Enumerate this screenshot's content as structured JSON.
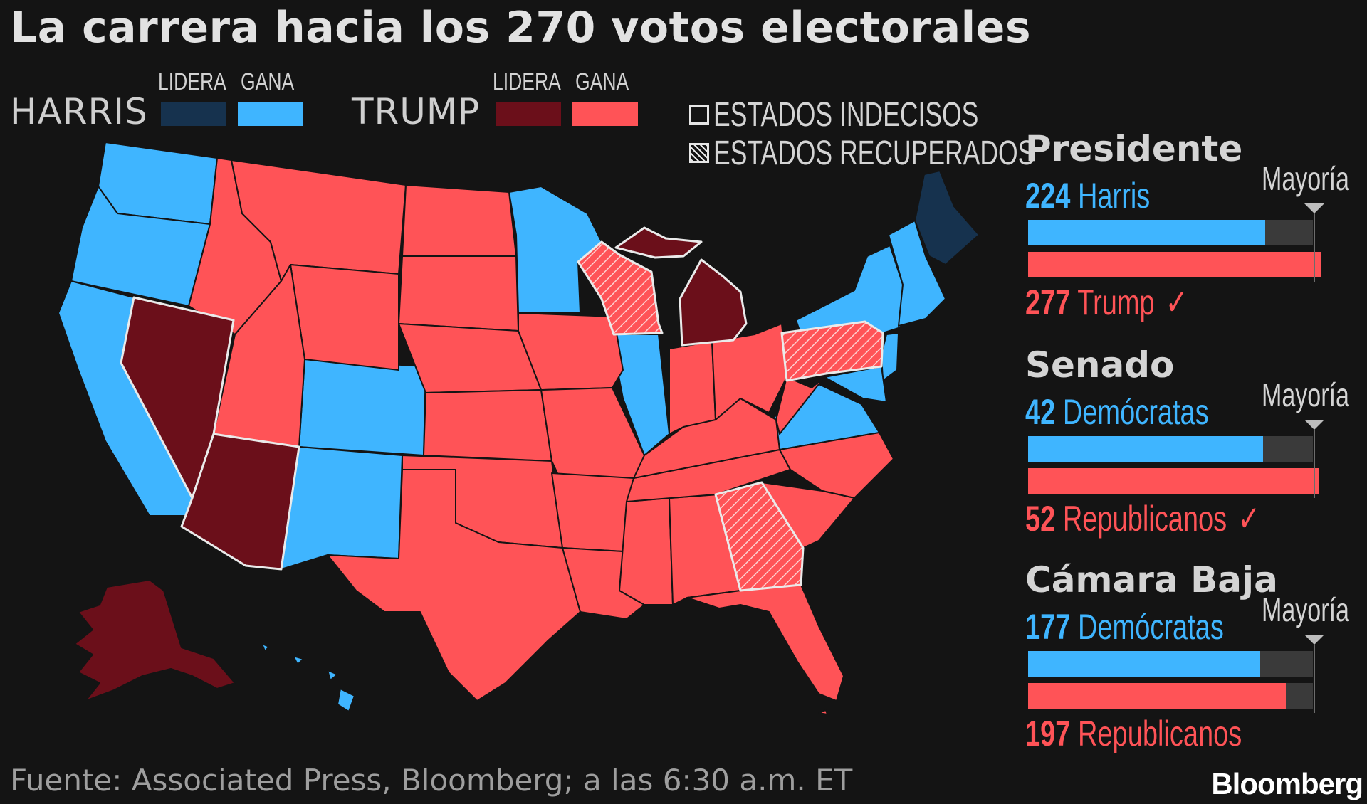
{
  "title": "La carrera hacia los 270 votos electorales",
  "legend": {
    "harris": "HARRIS",
    "trump": "TRUMP",
    "lidera": "LIDERA",
    "gana": "GANA",
    "undecided": "ESTADOS INDECISOS",
    "flipped": "ESTADOS RECUPERADOS",
    "colors": {
      "harris_lead": "#16324e",
      "harris_win": "#3fb5ff",
      "trump_lead": "#6b0f1a",
      "trump_win": "#ff5357"
    }
  },
  "panels": [
    {
      "title": "Presidente",
      "majority_label": "Mayoría",
      "dem_num": "224",
      "dem_label": "Harris",
      "rep_num": "277",
      "rep_label": "Trump",
      "rep_check": "✓",
      "dem_value": 224,
      "rep_value": 277,
      "majority": 270,
      "total": 538
    },
    {
      "title": "Senado",
      "majority_label": "Mayoría",
      "dem_num": "42",
      "dem_label": "Demócratas",
      "rep_num": "52",
      "rep_label": "Republicanos",
      "rep_check": "✓",
      "dem_value": 42,
      "rep_value": 52,
      "majority": 51,
      "total": 100
    },
    {
      "title": "Cámara Baja",
      "majority_label": "Mayoría",
      "dem_num": "177",
      "dem_label": "Demócratas",
      "rep_num": "197",
      "rep_label": "Republicanos",
      "rep_check": "",
      "dem_value": 177,
      "rep_value": 197,
      "majority": 218,
      "total": 435
    }
  ],
  "source": "Fuente: Associated Press, Bloomberg; a las 6:30 a.m. ET",
  "brand": "Bloomberg"
}
